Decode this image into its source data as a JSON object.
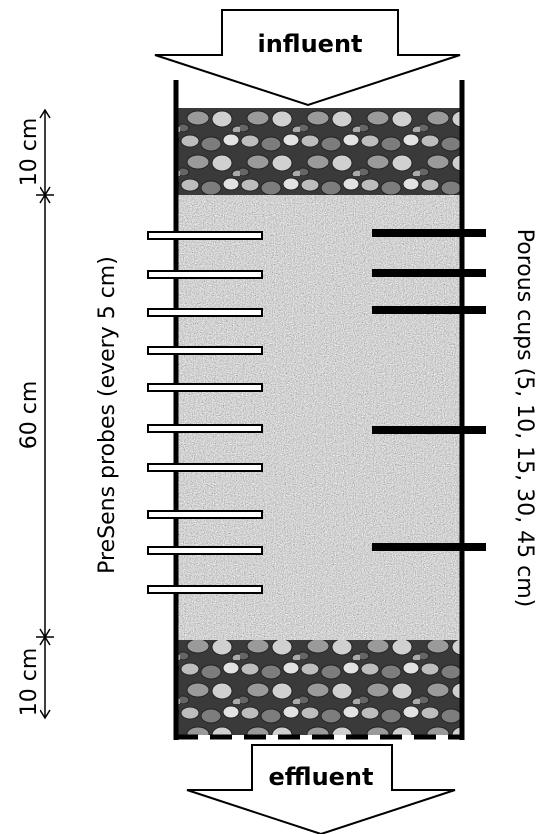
{
  "influent_label": "influent",
  "effluent_label": "effluent",
  "dimensions": {
    "top_gravel": "10 cm",
    "sand": "60 cm",
    "bottom_gravel": "10 cm"
  },
  "left_probes_label": "PreSens probes (every 5 cm)",
  "right_cups_label": "Porous cups (5, 10, 15, 30, 45 cm)"
}
